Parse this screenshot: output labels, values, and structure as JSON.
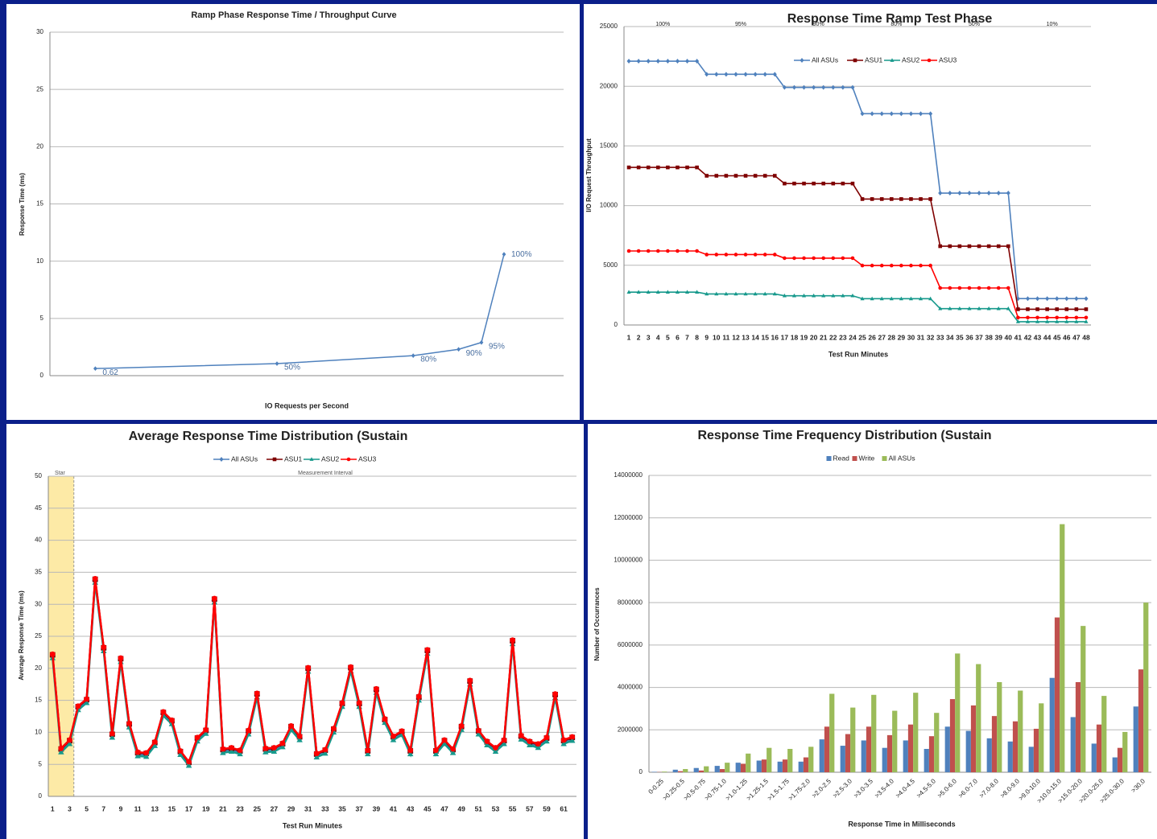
{
  "chart_data": [
    {
      "type": "line",
      "title": "Ramp Phase Response Time / Throughput Curve",
      "x_label": "IO Requests per Second",
      "y_label": "Response Time (ms)",
      "x": [
        2210,
        11050,
        17680,
        19890,
        21000,
        22100
      ],
      "series": [
        {
          "color": "#4f81bd",
          "marker": "diamond",
          "values": [
            0.62,
            1.05,
            1.75,
            2.3,
            2.9,
            10.6
          ]
        }
      ],
      "point_labels": [
        "0.62",
        "50%",
        "80%",
        "90%",
        "95%",
        "100%"
      ],
      "xlim": [
        0,
        25000
      ],
      "ylim": [
        0,
        30
      ],
      "yticks": [
        0,
        5,
        10,
        15,
        20,
        25,
        30
      ],
      "grid": true
    },
    {
      "type": "line",
      "title": "Response Time Ramp Test Phase",
      "x_label": "Test Run Minutes",
      "y_label": "I/O Request Throughput",
      "categories": [
        1,
        2,
        3,
        4,
        5,
        6,
        7,
        8,
        9,
        10,
        11,
        12,
        13,
        14,
        15,
        16,
        17,
        18,
        19,
        20,
        21,
        22,
        23,
        24,
        25,
        26,
        27,
        28,
        29,
        30,
        31,
        32,
        33,
        34,
        35,
        36,
        37,
        38,
        39,
        40,
        41,
        42,
        43,
        44,
        45,
        46,
        47,
        48
      ],
      "phase_labels": [
        "100%",
        "95%",
        "90%",
        "80%",
        "50%",
        "10%"
      ],
      "series": [
        {
          "name": "All ASUs",
          "color": "#4f81bd",
          "marker": "diamond",
          "values": [
            22100,
            22100,
            22100,
            22100,
            22100,
            22100,
            22100,
            22100,
            21000,
            21000,
            21000,
            21000,
            21000,
            21000,
            21000,
            21000,
            19900,
            19900,
            19900,
            19900,
            19900,
            19900,
            19900,
            19900,
            17700,
            17700,
            17700,
            17700,
            17700,
            17700,
            17700,
            17700,
            11050,
            11050,
            11050,
            11050,
            11050,
            11050,
            11050,
            11050,
            2210,
            2210,
            2210,
            2210,
            2210,
            2210,
            2210,
            2210
          ]
        },
        {
          "name": "ASU1",
          "color": "#7f0000",
          "marker": "square",
          "values": [
            13200,
            13200,
            13200,
            13200,
            13200,
            13200,
            13200,
            13200,
            12500,
            12500,
            12500,
            12500,
            12500,
            12500,
            12500,
            12500,
            11850,
            11850,
            11850,
            11850,
            11850,
            11850,
            11850,
            11850,
            10550,
            10550,
            10550,
            10550,
            10550,
            10550,
            10550,
            10550,
            6600,
            6600,
            6600,
            6600,
            6600,
            6600,
            6600,
            6600,
            1320,
            1320,
            1320,
            1320,
            1320,
            1320,
            1320,
            1320
          ]
        },
        {
          "name": "ASU2",
          "color": "#17998c",
          "marker": "triangle",
          "values": [
            2750,
            2750,
            2750,
            2750,
            2750,
            2750,
            2750,
            2750,
            2600,
            2600,
            2600,
            2600,
            2600,
            2600,
            2600,
            2600,
            2450,
            2450,
            2450,
            2450,
            2450,
            2450,
            2450,
            2450,
            2200,
            2200,
            2200,
            2200,
            2200,
            2200,
            2200,
            2200,
            1370,
            1370,
            1370,
            1370,
            1370,
            1370,
            1370,
            1370,
            275,
            275,
            275,
            275,
            275,
            275,
            275,
            275
          ]
        },
        {
          "name": "ASU3",
          "color": "#ff0000",
          "marker": "circle",
          "values": [
            6200,
            6200,
            6200,
            6200,
            6200,
            6200,
            6200,
            6200,
            5900,
            5900,
            5900,
            5900,
            5900,
            5900,
            5900,
            5900,
            5600,
            5600,
            5600,
            5600,
            5600,
            5600,
            5600,
            5600,
            4980,
            4980,
            4980,
            4980,
            4980,
            4980,
            4980,
            4980,
            3100,
            3100,
            3100,
            3100,
            3100,
            3100,
            3100,
            3100,
            620,
            620,
            620,
            620,
            620,
            620,
            620,
            620
          ]
        }
      ],
      "ylim": [
        0,
        25000
      ],
      "yticks": [
        0,
        5000,
        10000,
        15000,
        20000,
        25000
      ],
      "grid": true,
      "legend": "top"
    },
    {
      "type": "line",
      "title": "Average Response Time Distribution (Sustain",
      "x_label": "Test Run Minutes",
      "y_label": "Average Response Time (ms)",
      "annotations": [
        "Star",
        "Measurement Interval"
      ],
      "categories": [
        1,
        null,
        3,
        null,
        5,
        null,
        7,
        null,
        9,
        null,
        11,
        null,
        13,
        null,
        15,
        null,
        17,
        null,
        19,
        null,
        21,
        null,
        23,
        null,
        25,
        null,
        27,
        null,
        29,
        null,
        31,
        null,
        33,
        null,
        35,
        null,
        37,
        null,
        39,
        null,
        41,
        null,
        43,
        null,
        45,
        null,
        47,
        null,
        49,
        null,
        51,
        null,
        53,
        null,
        55,
        null,
        57,
        null,
        59,
        null,
        61,
        null
      ],
      "series": [
        {
          "name": "All ASUs",
          "color": "#4f81bd",
          "marker": "diamond",
          "values": [
            21.9,
            7.2,
            8.5,
            13.8,
            14.9,
            33.7,
            23.0,
            9.5,
            21.3,
            11.1,
            6.6,
            6.5,
            8.2,
            12.9,
            11.6,
            6.8,
            5.1,
            8.9,
            10.1,
            30.6,
            7.1,
            7.3,
            6.9,
            10.0,
            15.8,
            7.2,
            7.3,
            8.0,
            10.7,
            9.1,
            19.8,
            6.4,
            7.0,
            10.3,
            14.3,
            19.9,
            14.3,
            6.9,
            16.5,
            11.8,
            9.1,
            9.9,
            6.9,
            15.3,
            22.6,
            6.9,
            8.5,
            7.1,
            10.7,
            17.8,
            10.0,
            8.3,
            7.3,
            8.5,
            24.1,
            9.2,
            8.3,
            7.9,
            8.9,
            15.7,
            8.5,
            9.0
          ]
        },
        {
          "name": "ASU1",
          "color": "#7f0000",
          "marker": "square",
          "values": [
            22.1,
            7.4,
            8.7,
            14.0,
            15.1,
            33.9,
            23.2,
            9.7,
            21.5,
            11.3,
            6.8,
            6.7,
            8.4,
            13.1,
            11.8,
            7.0,
            5.3,
            9.1,
            10.3,
            30.8,
            7.3,
            7.5,
            7.1,
            10.2,
            16.0,
            7.4,
            7.5,
            8.2,
            10.9,
            9.3,
            20.0,
            6.6,
            7.2,
            10.5,
            14.5,
            20.1,
            14.5,
            7.1,
            16.7,
            12.0,
            9.3,
            10.1,
            7.1,
            15.5,
            22.8,
            7.1,
            8.7,
            7.3,
            10.9,
            18.0,
            10.2,
            8.5,
            7.5,
            8.7,
            24.3,
            9.4,
            8.5,
            8.1,
            9.1,
            15.9,
            8.7,
            9.2
          ]
        },
        {
          "name": "ASU2",
          "color": "#17998c",
          "marker": "triangle",
          "values": [
            21.6,
            6.9,
            8.2,
            13.5,
            14.6,
            33.4,
            22.7,
            9.2,
            21.0,
            10.8,
            6.3,
            6.2,
            7.9,
            12.6,
            11.3,
            6.5,
            4.8,
            8.6,
            9.8,
            30.3,
            6.8,
            7.0,
            6.6,
            9.7,
            15.5,
            6.9,
            7.0,
            7.7,
            10.4,
            8.8,
            19.5,
            6.1,
            6.7,
            10.0,
            14.0,
            19.6,
            14.0,
            6.6,
            16.2,
            11.5,
            8.8,
            9.6,
            6.6,
            15.0,
            22.3,
            6.6,
            8.2,
            6.8,
            10.4,
            17.5,
            9.7,
            8.0,
            7.0,
            8.2,
            23.8,
            8.9,
            8.0,
            7.6,
            8.6,
            15.4,
            8.2,
            8.7
          ]
        },
        {
          "name": "ASU3",
          "color": "#ff0000",
          "marker": "circle",
          "values": [
            22.2,
            7.5,
            8.8,
            14.1,
            15.2,
            34.0,
            23.3,
            9.8,
            21.6,
            11.4,
            6.9,
            6.8,
            8.5,
            13.2,
            11.9,
            7.1,
            5.4,
            9.2,
            10.4,
            30.9,
            7.4,
            7.6,
            7.2,
            10.3,
            16.1,
            7.5,
            7.6,
            8.3,
            11.0,
            9.4,
            20.1,
            6.7,
            7.3,
            10.6,
            14.6,
            20.2,
            14.6,
            7.2,
            16.8,
            12.1,
            9.4,
            10.2,
            7.2,
            15.6,
            22.9,
            7.2,
            8.8,
            7.4,
            11.0,
            18.1,
            10.3,
            8.6,
            7.6,
            8.8,
            24.4,
            9.5,
            8.6,
            8.2,
            9.2,
            16.0,
            8.8,
            9.3
          ]
        }
      ],
      "ylim": [
        0,
        50
      ],
      "yticks": [
        0,
        5,
        10,
        15,
        20,
        25,
        30,
        35,
        40,
        45,
        50
      ],
      "grid": true,
      "legend": "top"
    },
    {
      "type": "bar",
      "title": "Response Time Frequency Distribution (Sustain",
      "x_label": "Response Time in Milliseconds",
      "y_label": "Number of Occurrances",
      "categories": [
        "0-0.25",
        ">0.25-0.5",
        ">0.5-0.75",
        ">0.75-1.0",
        ">1.0-1.25",
        ">1.25-1.5",
        ">1.5-1.75",
        ">1.75-2.0",
        ">2.0-2.5",
        ">2.5-3.0",
        ">3.0-3.5",
        ">3.5-4.0",
        ">4.0-4.5",
        ">4.5-5.0",
        ">5.0-6.0",
        ">6.0-7.0",
        ">7.0-8.0",
        ">8.0-9.0",
        ">9.0-10.0",
        ">10.0-15.0",
        ">15.0-20.0",
        ">20.0-25.0",
        ">25.0-30.0",
        ">30.0"
      ],
      "series": [
        {
          "name": "Read",
          "color": "#4f81bd",
          "values": [
            20000,
            120000,
            200000,
            300000,
            450000,
            550000,
            500000,
            500000,
            1550000,
            1250000,
            1500000,
            1150000,
            1500000,
            1100000,
            2150000,
            1950000,
            1600000,
            1450000,
            1200000,
            4450000,
            2600000,
            1350000,
            700000,
            3100000
          ]
        },
        {
          "name": "Write",
          "color": "#c0504d",
          "values": [
            10000,
            50000,
            80000,
            150000,
            400000,
            600000,
            600000,
            700000,
            2150000,
            1800000,
            2150000,
            1750000,
            2250000,
            1700000,
            3450000,
            3150000,
            2650000,
            2400000,
            2050000,
            7300000,
            4250000,
            2250000,
            1150000,
            4850000
          ]
        },
        {
          "name": "All ASUs",
          "color": "#9bbb59",
          "values": [
            30000,
            150000,
            280000,
            450000,
            880000,
            1150000,
            1100000,
            1200000,
            3700000,
            3050000,
            3650000,
            2900000,
            3750000,
            2800000,
            5600000,
            5100000,
            4250000,
            3850000,
            3250000,
            11700000,
            6900000,
            3600000,
            1900000,
            8000000
          ]
        }
      ],
      "ylim": [
        0,
        14000000
      ],
      "yticks": [
        0,
        2000000,
        4000000,
        6000000,
        8000000,
        10000000,
        12000000,
        14000000
      ],
      "grid": true,
      "legend": "top"
    }
  ]
}
